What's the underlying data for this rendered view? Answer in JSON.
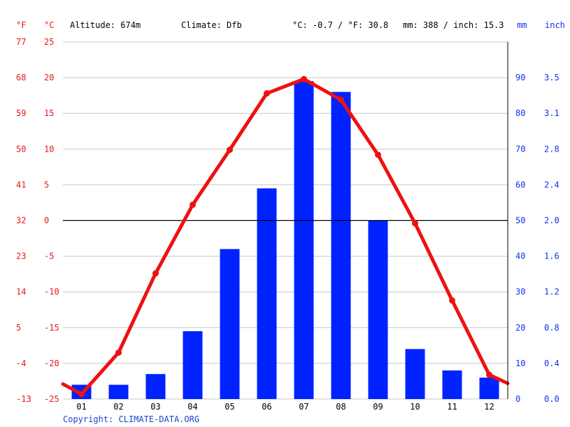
{
  "header": {
    "f_unit": "°F",
    "c_unit": "°C",
    "altitude": "Altitude: 674m",
    "climate": "Climate: Dfb",
    "avg_temp": "°C: -0.7 / °F: 30.8",
    "precip_total": "mm: 388 / inch: 15.3",
    "mm_unit": "mm",
    "inch_unit": "inch"
  },
  "footer": {
    "copyright": "Copyright: CLIMATE-DATA.ORG"
  },
  "colors": {
    "temperature": "#ee1111",
    "precipitation": "#0022ff",
    "grid": "#c8c8c8",
    "zero_line": "#000000"
  },
  "chart_data": {
    "type": "bar+line",
    "categories": [
      "01",
      "02",
      "03",
      "04",
      "05",
      "06",
      "07",
      "08",
      "09",
      "10",
      "11",
      "12"
    ],
    "series": [
      {
        "type": "bar",
        "axis": "right",
        "unit": "mm",
        "values": [
          4,
          4,
          7,
          19,
          42,
          59,
          89,
          86,
          50,
          14,
          8,
          6
        ]
      },
      {
        "type": "line",
        "axis": "left",
        "unit": "°C",
        "values": [
          -24.3,
          -18.5,
          -7.4,
          2.2,
          9.9,
          17.8,
          19.8,
          16.9,
          9.2,
          -0.4,
          -11.2,
          -21.6
        ]
      }
    ],
    "line_ends": {
      "start": -22.9,
      "end": -22.8
    },
    "left_axis_c": {
      "ticks": [
        "25",
        "20",
        "15",
        "10",
        "5",
        "0",
        "-5",
        "-10",
        "-15",
        "-20",
        "-25"
      ],
      "range": [
        -25,
        25
      ]
    },
    "left_axis_f": {
      "ticks": [
        "77",
        "68",
        "59",
        "50",
        "41",
        "32",
        "23",
        "14",
        "5",
        "-4",
        "-13"
      ]
    },
    "right_axis_mm": {
      "ticks": [
        "90",
        "80",
        "70",
        "60",
        "50",
        "40",
        "30",
        "20",
        "10",
        "0"
      ],
      "range": [
        0,
        100
      ]
    },
    "right_axis_inch": {
      "ticks": [
        "3.5",
        "3.1",
        "2.8",
        "2.4",
        "2.0",
        "1.6",
        "1.2",
        "0.8",
        "0.4",
        "0.0"
      ]
    },
    "grid": true
  }
}
